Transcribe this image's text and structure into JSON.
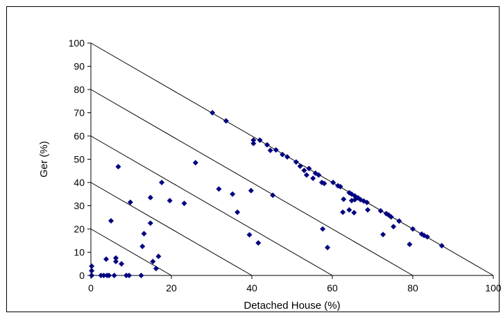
{
  "chart_data": {
    "type": "scatter",
    "title": "",
    "xlabel": "Detached House (%)",
    "ylabel": "Ger (%)",
    "xlim": [
      0,
      100
    ],
    "ylim": [
      0,
      100
    ],
    "x_ticks": [
      "0",
      "20",
      "40",
      "60",
      "80",
      "100"
    ],
    "y_ticks": [
      "0",
      "10",
      "20",
      "30",
      "40",
      "50",
      "60",
      "70",
      "80",
      "90",
      "100"
    ],
    "grid": false,
    "reference_lines": [
      {
        "from": [
          0,
          100
        ],
        "to": [
          100,
          0
        ]
      },
      {
        "from": [
          0,
          80
        ],
        "to": [
          80,
          0
        ]
      },
      {
        "from": [
          0,
          60
        ],
        "to": [
          60,
          0
        ]
      },
      {
        "from": [
          0,
          40
        ],
        "to": [
          40,
          0
        ]
      },
      {
        "from": [
          0,
          20
        ],
        "to": [
          20,
          0
        ]
      }
    ],
    "marker_color": "#000080",
    "points": [
      {
        "x": 0.2,
        "y": 0
      },
      {
        "x": 0.2,
        "y": 2
      },
      {
        "x": 0.2,
        "y": 4
      },
      {
        "x": 2.5,
        "y": 0
      },
      {
        "x": 3.2,
        "y": 0
      },
      {
        "x": 4,
        "y": 0
      },
      {
        "x": 4.5,
        "y": 0
      },
      {
        "x": 5.8,
        "y": 0
      },
      {
        "x": 8.8,
        "y": 0
      },
      {
        "x": 9.5,
        "y": 0
      },
      {
        "x": 12.5,
        "y": 0
      },
      {
        "x": 3.8,
        "y": 7
      },
      {
        "x": 6.2,
        "y": 6
      },
      {
        "x": 6.2,
        "y": 7.5
      },
      {
        "x": 7.6,
        "y": 5
      },
      {
        "x": 5,
        "y": 23.5
      },
      {
        "x": 6.8,
        "y": 46.8
      },
      {
        "x": 9.8,
        "y": 31.5
      },
      {
        "x": 12.8,
        "y": 12.5
      },
      {
        "x": 13.2,
        "y": 18
      },
      {
        "x": 14.8,
        "y": 22.5
      },
      {
        "x": 14.8,
        "y": 33.5
      },
      {
        "x": 15.4,
        "y": 6
      },
      {
        "x": 16.2,
        "y": 3
      },
      {
        "x": 16.8,
        "y": 8.2
      },
      {
        "x": 17.6,
        "y": 40
      },
      {
        "x": 19.6,
        "y": 32.2
      },
      {
        "x": 23.2,
        "y": 31
      },
      {
        "x": 26,
        "y": 48.5
      },
      {
        "x": 30.2,
        "y": 70
      },
      {
        "x": 31.8,
        "y": 37.2
      },
      {
        "x": 33.6,
        "y": 66.5
      },
      {
        "x": 35.2,
        "y": 35
      },
      {
        "x": 36.4,
        "y": 27.2
      },
      {
        "x": 39.4,
        "y": 17.5
      },
      {
        "x": 39.8,
        "y": 36.5
      },
      {
        "x": 40.4,
        "y": 58.2
      },
      {
        "x": 40.4,
        "y": 56.8
      },
      {
        "x": 41.6,
        "y": 14
      },
      {
        "x": 42,
        "y": 58.2
      },
      {
        "x": 43.8,
        "y": 56.2
      },
      {
        "x": 44.6,
        "y": 53.8
      },
      {
        "x": 45.2,
        "y": 34.5
      },
      {
        "x": 46,
        "y": 54
      },
      {
        "x": 47.6,
        "y": 52
      },
      {
        "x": 48.8,
        "y": 51
      },
      {
        "x": 51,
        "y": 48.8
      },
      {
        "x": 52,
        "y": 47
      },
      {
        "x": 53,
        "y": 45.2
      },
      {
        "x": 53.6,
        "y": 43.2
      },
      {
        "x": 54.2,
        "y": 46
      },
      {
        "x": 55.2,
        "y": 41.8
      },
      {
        "x": 55.8,
        "y": 44
      },
      {
        "x": 56.6,
        "y": 43.2
      },
      {
        "x": 57.4,
        "y": 40
      },
      {
        "x": 58,
        "y": 39.6
      },
      {
        "x": 57.6,
        "y": 20
      },
      {
        "x": 58.8,
        "y": 12
      },
      {
        "x": 60.2,
        "y": 40
      },
      {
        "x": 61.4,
        "y": 38.6
      },
      {
        "x": 62,
        "y": 38.2
      },
      {
        "x": 62.6,
        "y": 27.2
      },
      {
        "x": 62.8,
        "y": 32.8
      },
      {
        "x": 64.2,
        "y": 35.6
      },
      {
        "x": 64.2,
        "y": 28.2
      },
      {
        "x": 64.8,
        "y": 35
      },
      {
        "x": 64.8,
        "y": 32.2
      },
      {
        "x": 65.4,
        "y": 27
      },
      {
        "x": 65.6,
        "y": 34.2
      },
      {
        "x": 65.6,
        "y": 32.6
      },
      {
        "x": 66.4,
        "y": 33.4
      },
      {
        "x": 67,
        "y": 32.6
      },
      {
        "x": 67.8,
        "y": 32
      },
      {
        "x": 68.6,
        "y": 31.4
      },
      {
        "x": 68.8,
        "y": 28.2
      },
      {
        "x": 72,
        "y": 27.8
      },
      {
        "x": 72.6,
        "y": 17.6
      },
      {
        "x": 73.4,
        "y": 26.6
      },
      {
        "x": 74,
        "y": 26
      },
      {
        "x": 74.6,
        "y": 25.2
      },
      {
        "x": 75.2,
        "y": 21
      },
      {
        "x": 76.6,
        "y": 23.4
      },
      {
        "x": 79.2,
        "y": 13.4
      },
      {
        "x": 80,
        "y": 20
      },
      {
        "x": 82.2,
        "y": 17.8
      },
      {
        "x": 82.8,
        "y": 17.2
      },
      {
        "x": 83.6,
        "y": 16.6
      },
      {
        "x": 87.2,
        "y": 12.8
      }
    ]
  }
}
